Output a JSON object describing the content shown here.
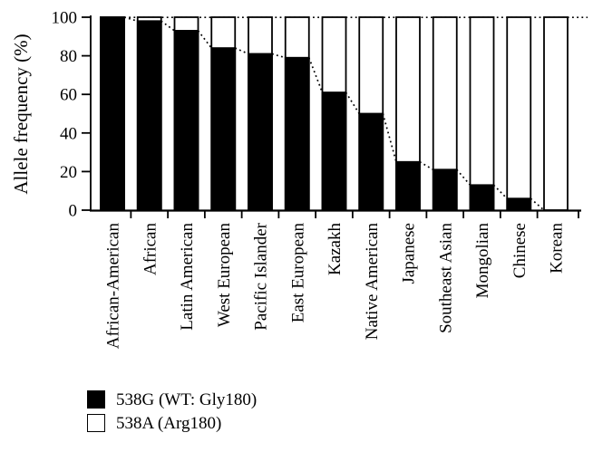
{
  "chart_data": {
    "type": "bar",
    "subtype": "stacked-100",
    "title": "",
    "xlabel": "",
    "ylabel": "Allele frequency (%)",
    "ylim": [
      0,
      100
    ],
    "yticks": [
      0,
      20,
      40,
      60,
      80,
      100
    ],
    "grid": false,
    "legend_position": "bottom-left",
    "categories": [
      "African-American",
      "African",
      "Latin American",
      "West European",
      "Pacific Islander",
      "East European",
      "Kazakh",
      "Native American",
      "Japanese",
      "Southeast Asian",
      "Mongolian",
      "Chinese",
      "Korean"
    ],
    "series": [
      {
        "name": "538G (WT: Gly180)",
        "color": "#000000",
        "values": [
          100,
          98,
          93,
          84,
          81,
          79,
          61,
          50,
          25,
          21,
          13,
          6,
          0
        ]
      },
      {
        "name": "538A (Arg180)",
        "color": "#ffffff",
        "values": [
          0,
          2,
          7,
          16,
          19,
          21,
          39,
          50,
          75,
          79,
          87,
          94,
          100
        ]
      }
    ],
    "annotations": [
      "dotted horizontal reference line at 100%",
      "dotted trend line tracing the tops of the 538G (black) bar segments down to the baseline"
    ]
  },
  "colors": {
    "foreground": "#000000",
    "background": "#ffffff"
  }
}
